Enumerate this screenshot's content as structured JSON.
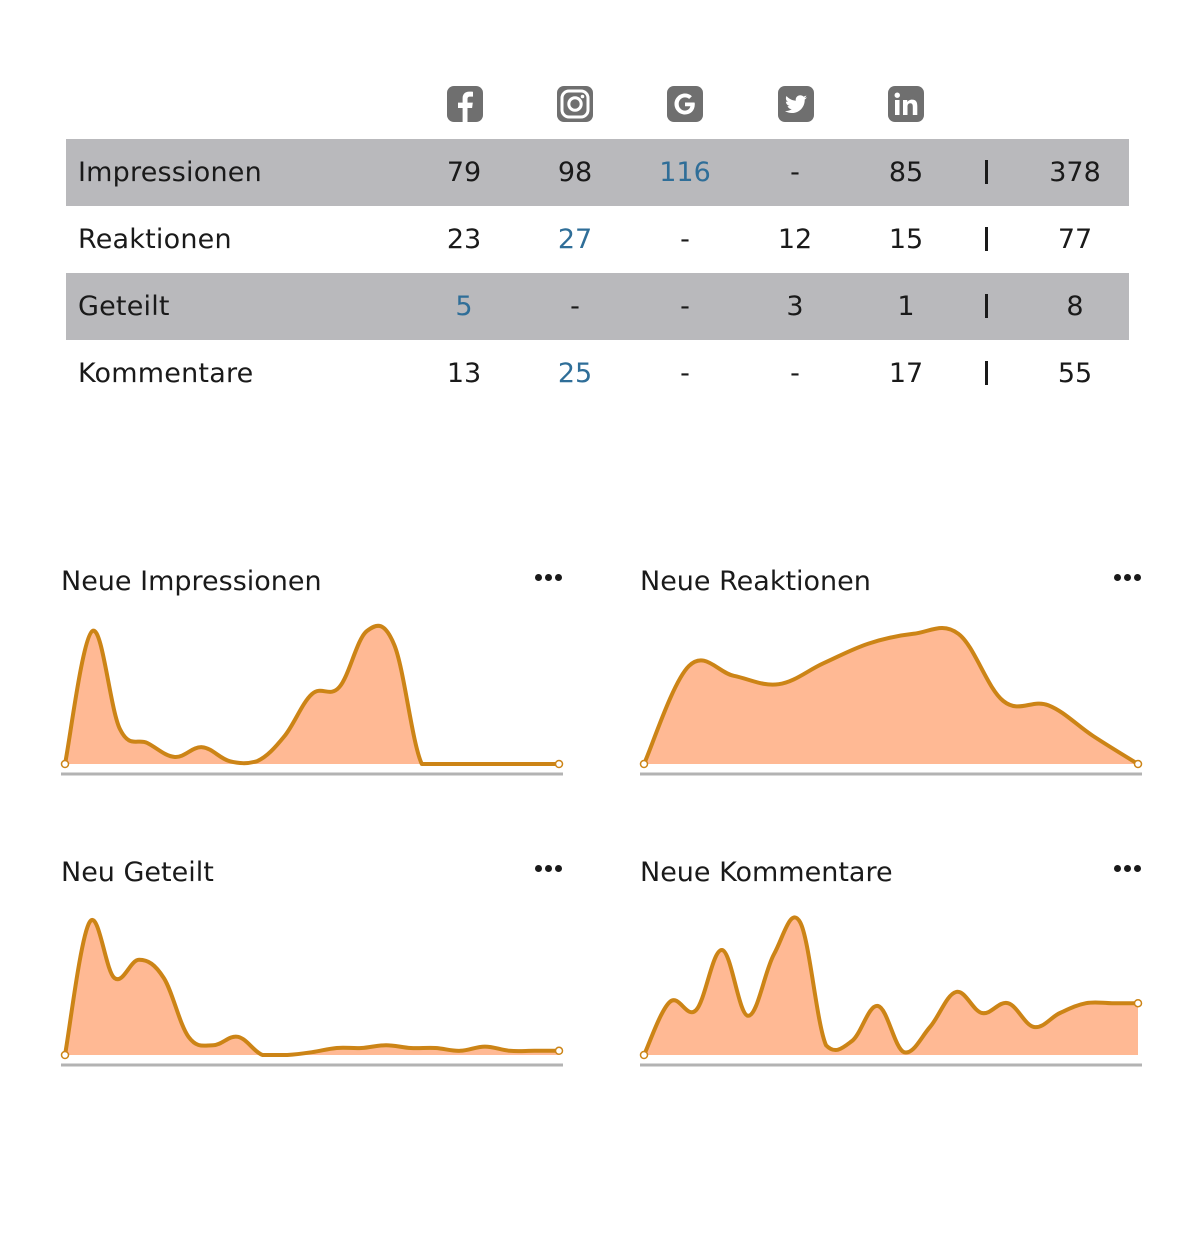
{
  "platforms": [
    {
      "icon": "facebook-icon"
    },
    {
      "icon": "instagram-icon"
    },
    {
      "icon": "google-icon"
    },
    {
      "icon": "twitter-icon"
    },
    {
      "icon": "linkedin-icon"
    }
  ],
  "table": {
    "rows": [
      {
        "label": "Impressionen",
        "values": [
          "79",
          "98",
          "116",
          "-",
          "85"
        ],
        "total": "378",
        "highlight": 2,
        "shaded": true
      },
      {
        "label": "Reaktionen",
        "values": [
          "23",
          "27",
          "-",
          "12",
          "15"
        ],
        "total": "77",
        "highlight": 1,
        "shaded": false
      },
      {
        "label": "Geteilt",
        "values": [
          "5",
          "-",
          "-",
          "3",
          "1"
        ],
        "total": "8",
        "highlight": 0,
        "shaded": true
      },
      {
        "label": "Kommentare",
        "values": [
          "13",
          "25",
          "-",
          "-",
          "17"
        ],
        "total": "55",
        "highlight": 1,
        "shaded": false
      }
    ]
  },
  "colors": {
    "fill": "#ffb994",
    "line": "#cc8416",
    "axis": "#b3b3b3",
    "highlight": "#2f6e98",
    "row_shade": "#b9b9bc",
    "icon": "#6f6f6f"
  },
  "chart_data": [
    {
      "type": "area",
      "title": "Neue Impressionen",
      "x": [
        0,
        1,
        2,
        3,
        4,
        5,
        6,
        7,
        8,
        9,
        10,
        11,
        12,
        13,
        14,
        15,
        16,
        17,
        18
      ],
      "values": [
        0.0,
        0.95,
        0.25,
        0.15,
        0.05,
        0.12,
        0.02,
        0.02,
        0.2,
        0.5,
        0.55,
        0.95,
        0.85,
        0.0,
        0.0,
        0.0,
        0.0,
        0.0,
        0.0
      ],
      "ylim": [
        0,
        1
      ]
    },
    {
      "type": "area",
      "title": "Neue Reaktionen",
      "x": [
        0,
        1,
        2,
        3,
        4,
        5,
        6,
        7,
        8,
        9,
        10,
        11
      ],
      "values": [
        0.0,
        0.7,
        0.63,
        0.57,
        0.72,
        0.86,
        0.93,
        0.93,
        0.45,
        0.42,
        0.2,
        0.0
      ],
      "ylim": [
        0,
        1
      ]
    },
    {
      "type": "area",
      "title": "Neu Geteilt",
      "x": [
        0,
        1,
        2,
        3,
        4,
        5,
        6,
        7,
        8,
        9,
        10,
        11,
        12,
        13,
        14,
        15,
        16,
        17,
        18,
        19,
        20
      ],
      "values": [
        0.0,
        0.95,
        0.55,
        0.68,
        0.55,
        0.13,
        0.07,
        0.13,
        0.0,
        0.0,
        0.02,
        0.05,
        0.05,
        0.07,
        0.05,
        0.05,
        0.03,
        0.06,
        0.03,
        0.03,
        0.03
      ],
      "ylim": [
        0,
        1
      ]
    },
    {
      "type": "area",
      "title": "Neue Kommentare",
      "x": [
        0,
        1,
        2,
        3,
        4,
        5,
        6,
        7,
        8,
        9,
        10,
        11,
        12,
        13,
        14,
        15,
        16,
        17,
        18,
        19
      ],
      "values": [
        0.0,
        0.38,
        0.32,
        0.75,
        0.28,
        0.72,
        0.95,
        0.07,
        0.1,
        0.35,
        0.02,
        0.2,
        0.45,
        0.3,
        0.37,
        0.2,
        0.3,
        0.37,
        0.37,
        0.37
      ],
      "ylim": [
        0,
        1
      ]
    }
  ]
}
